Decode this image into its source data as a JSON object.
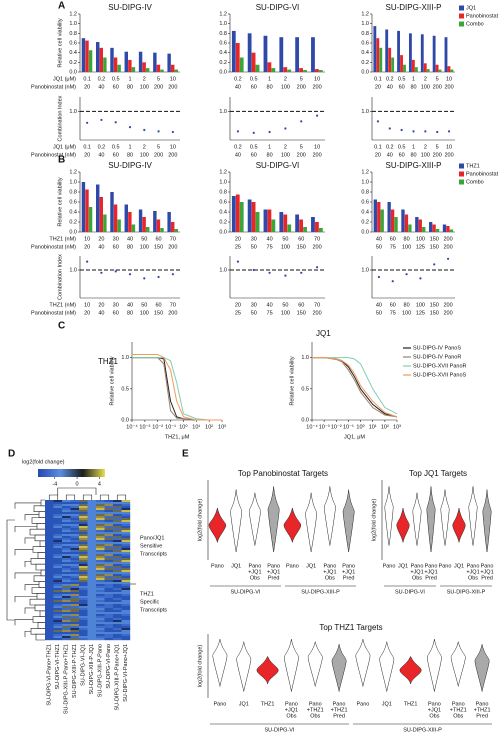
{
  "panel_labels": [
    "A",
    "B",
    "C",
    "D",
    "E"
  ],
  "chart_data": [
    {
      "type": "bar",
      "title": "SU-DIPG-IV",
      "ylabel": "Relative cell viability",
      "ylim": [
        0,
        1.2
      ],
      "yticks": [
        {
          "value": 0,
          "label": "0.0"
        },
        0.2,
        0.4,
        0.6,
        0.8,
        {
          "value": 1,
          "label": "1.0"
        },
        1.2
      ],
      "xlabels": [
        "JQ1 (μM)",
        "Panobinostat (nM)"
      ],
      "categories": [
        "0.1",
        "0.2",
        "0.5",
        "1",
        "2",
        "5",
        "10"
      ],
      "categories2": [
        "20",
        "40",
        "60",
        "80",
        "100",
        "200",
        "200"
      ],
      "series": [
        {
          "color": "#2f49a8",
          "values": [
            0.7,
            0.62,
            0.5,
            0.42,
            0.42,
            0.4,
            0.38
          ]
        },
        {
          "color": "#e8262a",
          "values": [
            0.65,
            0.5,
            0.3,
            0.25,
            0.2,
            0.15,
            0.15
          ]
        },
        {
          "color": "#3aa63a",
          "values": [
            0.45,
            0.3,
            0.15,
            0.1,
            0.08,
            0.05,
            0.05
          ]
        }
      ]
    },
    {
      "type": "bar",
      "title": "SU-DIPG-VI",
      "ylim": [
        0,
        1.2
      ],
      "yticks": [
        {
          "value": 0,
          "label": "0.0"
        },
        0.2,
        0.4,
        0.6,
        0.8,
        {
          "value": 1,
          "label": "1.0"
        },
        1.2
      ],
      "categories": [
        "0.2",
        "0.5",
        "1",
        "2",
        "5",
        "10"
      ],
      "categories2": [
        "40",
        "60",
        "80",
        "100",
        "200",
        "200"
      ],
      "series": [
        {
          "color": "#2f49a8",
          "values": [
            0.85,
            0.8,
            0.75,
            0.72,
            0.72,
            0.72
          ]
        },
        {
          "color": "#e8262a",
          "values": [
            0.6,
            0.4,
            0.2,
            0.1,
            0.08,
            0.06
          ]
        },
        {
          "color": "#3aa63a",
          "values": [
            0.3,
            0.15,
            0.08,
            0.05,
            0.04,
            0.04
          ]
        }
      ]
    },
    {
      "type": "bar",
      "title": "SU-DIPG-XIII-P",
      "ylim": [
        0,
        1.2
      ],
      "yticks": [
        {
          "value": 0,
          "label": "0.0"
        },
        0.2,
        0.4,
        0.6,
        0.8,
        {
          "value": 1,
          "label": "1.0"
        },
        1.2
      ],
      "legend": "right",
      "categories": [
        "0.1",
        "0.2",
        "0.5",
        "1",
        "2",
        "5",
        "10"
      ],
      "categories2": [
        "20",
        "40",
        "60",
        "80",
        "100",
        "200",
        "200"
      ],
      "series": [
        {
          "name": "JQ1",
          "color": "#2f49a8",
          "values": [
            0.95,
            0.88,
            0.85,
            0.8,
            0.78,
            0.75,
            0.72
          ]
        },
        {
          "name": "Panobinostat",
          "color": "#e8262a",
          "values": [
            0.7,
            0.5,
            0.35,
            0.25,
            0.18,
            0.15,
            0.12
          ]
        },
        {
          "name": "Combo",
          "color": "#3aa63a",
          "values": [
            0.5,
            0.3,
            0.15,
            0.1,
            0.06,
            0.05,
            0.05
          ]
        }
      ]
    },
    {
      "type": "scatter",
      "ylabel": "Combination Index",
      "ylim": [
        0,
        1.5
      ],
      "yticks": [
        {
          "value": 1,
          "label": "1.0"
        }
      ],
      "refline": 1,
      "color": "#2f49a8",
      "xlabels": [
        "JQ1 (μM)",
        "Panobinostat (nM)"
      ],
      "categories": [
        "0.1",
        "0.2",
        "0.5",
        "1",
        "2",
        "5",
        "10"
      ],
      "categories2": [
        "20",
        "40",
        "60",
        "80",
        "100",
        "200",
        "200"
      ],
      "values": [
        0.6,
        0.7,
        0.62,
        0.45,
        0.35,
        0.3,
        0.28
      ]
    },
    {
      "type": "scatter",
      "ylim": [
        0,
        1.5
      ],
      "yticks": [
        {
          "value": 1,
          "label": "1.0"
        }
      ],
      "refline": 1,
      "color": "#2f49a8",
      "categories": [
        "0.2",
        "0.5",
        "1",
        "2",
        "5",
        "10"
      ],
      "categories2": [
        "40",
        "60",
        "80",
        "100",
        "200",
        "200"
      ],
      "values": [
        0.3,
        0.25,
        0.28,
        0.4,
        0.65,
        0.85
      ]
    },
    {
      "type": "scatter",
      "ylim": [
        0,
        1.5
      ],
      "yticks": [
        {
          "value": 1,
          "label": "1.0"
        }
      ],
      "refline": 1,
      "color": "#2f49a8",
      "categories": [
        "0.1",
        "0.2",
        "0.5",
        "1",
        "2",
        "5",
        "10"
      ],
      "categories2": [
        "20",
        "40",
        "60",
        "80",
        "100",
        "200",
        "200"
      ],
      "values": [
        0.65,
        0.4,
        0.35,
        0.3,
        0.3,
        0.28,
        0.3
      ]
    },
    {
      "type": "bar",
      "title": "SU-DIPG-IV",
      "ylabel": "Relative cell viability",
      "ylim": [
        0,
        1.2
      ],
      "yticks": [
        {
          "value": 0,
          "label": "0.0"
        },
        0.2,
        0.4,
        0.6,
        0.8,
        {
          "value": 1,
          "label": "1.0"
        },
        1.2
      ],
      "xlabels": [
        "THZ1 (nM)",
        "Panobinostat (nM)"
      ],
      "categories": [
        "10",
        "20",
        "30",
        "40",
        "50",
        "60",
        "70"
      ],
      "categories2": [
        "20",
        "40",
        "60",
        "80",
        "100",
        "150",
        "200"
      ],
      "series": [
        {
          "color": "#2f49a8",
          "values": [
            1.0,
            0.95,
            0.8,
            0.55,
            0.45,
            0.42,
            0.4
          ]
        },
        {
          "color": "#e8262a",
          "values": [
            0.85,
            0.7,
            0.55,
            0.4,
            0.3,
            0.25,
            0.2
          ]
        },
        {
          "color": "#3aa63a",
          "values": [
            0.5,
            0.35,
            0.25,
            0.15,
            0.1,
            0.08,
            0.06
          ]
        }
      ]
    },
    {
      "type": "bar",
      "title": "SU-DIPG-VI",
      "ylim": [
        0,
        1.2
      ],
      "yticks": [
        {
          "value": 0,
          "label": "0.0"
        },
        0.2,
        0.4,
        0.6,
        0.8,
        {
          "value": 1,
          "label": "1.0"
        },
        1.2
      ],
      "categories": [
        "20",
        "30",
        "40",
        "50",
        "60",
        "70"
      ],
      "categories2": [
        "25",
        "50",
        "75",
        "100",
        "150",
        "200"
      ],
      "series": [
        {
          "color": "#2f49a8",
          "values": [
            0.72,
            0.65,
            0.45,
            0.4,
            0.35,
            0.3
          ]
        },
        {
          "color": "#e8262a",
          "values": [
            0.75,
            0.6,
            0.45,
            0.35,
            0.25,
            0.2
          ]
        },
        {
          "color": "#3aa63a",
          "values": [
            0.6,
            0.4,
            0.25,
            0.15,
            0.1,
            0.08
          ]
        }
      ]
    },
    {
      "type": "bar",
      "title": "SU-DIPG-XIII-P",
      "ylim": [
        0,
        1.2
      ],
      "yticks": [
        {
          "value": 0,
          "label": "0.0"
        },
        0.2,
        0.4,
        0.6,
        0.8,
        {
          "value": 1,
          "label": "1.0"
        },
        1.2
      ],
      "legend": "right",
      "categories": [
        "40",
        "60",
        "80",
        "100",
        "150",
        "200"
      ],
      "categories2": [
        "50",
        "75",
        "100",
        "125",
        "150",
        "200"
      ],
      "series": [
        {
          "name": "THZ1",
          "color": "#2f49a8",
          "values": [
            0.65,
            0.6,
            0.45,
            0.3,
            0.2,
            0.15
          ]
        },
        {
          "name": "Panobinostat",
          "color": "#e8262a",
          "values": [
            0.6,
            0.45,
            0.35,
            0.25,
            0.15,
            0.12
          ]
        },
        {
          "name": "Combo",
          "color": "#3aa63a",
          "values": [
            0.45,
            0.3,
            0.15,
            0.1,
            0.06,
            0.05
          ]
        }
      ]
    },
    {
      "type": "scatter",
      "ylabel": "Combination Index",
      "ylim": [
        0,
        1.5
      ],
      "yticks": [
        {
          "value": 1,
          "label": "1.0"
        }
      ],
      "refline": 1,
      "color": "#2f49a8",
      "xlabels": [
        "THZ1 (nM)",
        "Panobinostat (nM)"
      ],
      "categories": [
        "10",
        "20",
        "30",
        "40",
        "50",
        "60",
        "70"
      ],
      "categories2": [
        "20",
        "40",
        "60",
        "80",
        "100",
        "150",
        "200"
      ],
      "values": [
        1.3,
        0.9,
        0.95,
        0.85,
        0.7,
        0.75,
        0.85
      ]
    },
    {
      "type": "scatter",
      "ylim": [
        0,
        1.5
      ],
      "yticks": [
        {
          "value": 1,
          "label": "1.0"
        }
      ],
      "refline": 1,
      "color": "#2f49a8",
      "categories": [
        "20",
        "30",
        "40",
        "50",
        "60",
        "70"
      ],
      "categories2": [
        "25",
        "50",
        "75",
        "100",
        "150",
        "200"
      ],
      "values": [
        1.3,
        1.0,
        0.9,
        0.8,
        0.9,
        1.1
      ]
    },
    {
      "type": "scatter",
      "ylim": [
        0,
        1.5
      ],
      "yticks": [
        {
          "value": 1,
          "label": "1.0"
        }
      ],
      "refline": 1,
      "color": "#2f49a8",
      "categories": [
        "40",
        "60",
        "80",
        "100",
        "150",
        "200"
      ],
      "categories2": [
        "50",
        "75",
        "100",
        "125",
        "150",
        "200"
      ],
      "values": [
        0.75,
        0.6,
        0.85,
        0.7,
        1.2,
        1.4
      ]
    },
    {
      "type": "line",
      "title": "THZ1",
      "ylabel": "Relative cell viability",
      "xlabel": "THZ1, μM",
      "xscale": "log",
      "xlim": [
        0.0001,
        1000
      ],
      "ylim": [
        0,
        1.25
      ],
      "xticks": [
        {
          "value": 0.0001,
          "label": "10⁻⁴"
        },
        {
          "value": 0.001,
          "label": "10⁻³"
        },
        {
          "value": 0.01,
          "label": "10⁻²"
        },
        {
          "value": 0.1,
          "label": "10⁻¹"
        },
        {
          "value": 1,
          "label": "10⁰"
        },
        {
          "value": 10,
          "label": "10¹"
        },
        {
          "value": 100,
          "label": "10²"
        },
        {
          "value": 1000,
          "label": "10³"
        }
      ],
      "yticks": [
        {
          "value": 0,
          "label": "0.0"
        },
        0.5,
        {
          "value": 1,
          "label": "1.0"
        }
      ],
      "x": [
        0.0001,
        0.001,
        0.01,
        0.03,
        0.1,
        0.3,
        1,
        10,
        100,
        1000
      ],
      "series": [
        {
          "color": "#222222",
          "values": [
            1,
            1,
            1,
            0.98,
            0.3,
            0.05,
            0.02,
            0,
            0,
            0
          ]
        },
        {
          "color": "#9b7f6a",
          "values": [
            1,
            1,
            1,
            0.9,
            0.15,
            0.03,
            0.02,
            0,
            0,
            0
          ]
        },
        {
          "color": "#7fcfb0",
          "values": [
            1,
            1,
            1,
            1,
            0.95,
            0.6,
            0.1,
            0.02,
            0,
            0
          ]
        },
        {
          "color": "#f29a5c",
          "values": [
            1.05,
            1.05,
            1.05,
            1,
            0.8,
            0.3,
            0.05,
            0,
            0,
            0
          ]
        }
      ]
    },
    {
      "type": "line",
      "title": "JQ1",
      "ylabel": "Relative cell viability",
      "xlabel": "JQ1, μM",
      "xscale": "log",
      "xlim": [
        0.0001,
        1000
      ],
      "ylim": [
        0,
        1.25
      ],
      "legend": "right",
      "xticks": [
        {
          "value": 0.0001,
          "label": "10⁻⁴"
        },
        {
          "value": 0.001,
          "label": "10⁻³"
        },
        {
          "value": 0.01,
          "label": "10⁻²"
        },
        {
          "value": 0.1,
          "label": "10⁻¹"
        },
        {
          "value": 1,
          "label": "10⁰"
        },
        {
          "value": 10,
          "label": "10¹"
        },
        {
          "value": 100,
          "label": "10²"
        },
        {
          "value": 1000,
          "label": "10³"
        }
      ],
      "yticks": [
        {
          "value": 0,
          "label": "0.0"
        },
        0.5,
        {
          "value": 1,
          "label": "1.0"
        }
      ],
      "x": [
        0.0001,
        0.001,
        0.01,
        0.03,
        0.1,
        0.3,
        1,
        10,
        100,
        1000
      ],
      "series": [
        {
          "name": "SU-DIPG-IV PanoS",
          "color": "#222222",
          "values": [
            1,
            1,
            0.98,
            0.95,
            0.85,
            0.7,
            0.5,
            0.25,
            0.1,
            0.05
          ]
        },
        {
          "name": "SU-DIPG-IV PanoR",
          "color": "#9b7f6a",
          "values": [
            1,
            1,
            0.97,
            0.93,
            0.8,
            0.65,
            0.45,
            0.2,
            0.08,
            0.05
          ]
        },
        {
          "name": "SU-DIPG-XVII PanoR",
          "color": "#7fcfb0",
          "values": [
            1,
            1,
            1,
            1,
            1,
            0.98,
            0.9,
            0.5,
            0.2,
            0.1
          ]
        },
        {
          "name": "SU-DIPG-XVII PanoS",
          "color": "#f29a5c",
          "values": [
            1,
            1,
            0.98,
            0.95,
            0.88,
            0.75,
            0.55,
            0.3,
            0.12,
            0.05
          ]
        }
      ]
    },
    {
      "type": "heatmap",
      "colorbar_label": "log2(fold change)",
      "clim": [
        -7,
        5
      ],
      "colorbar_ticks": [
        -4,
        0,
        4
      ],
      "colors": [
        "#2448b0",
        "#5b8ee0",
        "#1c1c1c",
        "#eae050"
      ],
      "columns": [
        "SU-DIPG-VI-Pano+THZ1",
        "SU-DIPG-VI-THZ1",
        "SU-DIPG-XIII-P-Pano+THZ1",
        "SU-DIPG-XIII-P-THZ1",
        "SU-DIPG-VI-JQ1",
        "SU-DIPG-XIII-P-JQ1",
        "SU-DIPG-XIII-P-Pano",
        "SU-DIPG-VI-Pano",
        "SU-DIPG-XIII-P-Pano+JQ1",
        "SU-DIPG-VI-Pano+JQ1"
      ],
      "annotations": [
        [
          "Pano/JQ1",
          "Sensitive",
          "Transcripts"
        ],
        [
          "THZ1",
          "Specific",
          "Transcripts"
        ]
      ]
    },
    {
      "type": "violin",
      "title": "Top Panobinostat Targets",
      "ylabel": "log2(fold change)",
      "categories": [
        [
          "Pano"
        ],
        [
          "JQ1"
        ],
        [
          "Pano",
          "+JQ1",
          "Obs"
        ],
        [
          "Pano",
          "+JQ1",
          "Pred"
        ],
        [
          "Pano"
        ],
        [
          "JQ1"
        ],
        [
          "Pano",
          "+JQ1",
          "Obs"
        ],
        [
          "Pano",
          "+JQ1",
          "Pred"
        ]
      ],
      "colors": [
        "#e8262a",
        "#ffffff",
        "#ffffff",
        "#a9a9a9",
        "#e8262a",
        "#ffffff",
        "#ffffff",
        "#a9a9a9"
      ],
      "groups": [
        "SU-DIPG-VI",
        "SU-DIPG-XIII-P"
      ]
    },
    {
      "type": "violin",
      "title": "Top JQ1 Targets",
      "ylabel": "log2(fold change)",
      "categories": [
        [
          "Pano"
        ],
        [
          "JQ1"
        ],
        [
          "Pano",
          "+JQ1",
          "Obs"
        ],
        [
          "Pano",
          "+JQ1",
          "Pred"
        ],
        [
          "Pano"
        ],
        [
          "JQ1"
        ],
        [
          "Pano",
          "+JQ1",
          "Obs"
        ],
        [
          "Pano",
          "+JQ1",
          "Pred"
        ]
      ],
      "colors": [
        "#ffffff",
        "#e8262a",
        "#ffffff",
        "#a9a9a9",
        "#ffffff",
        "#e8262a",
        "#ffffff",
        "#a9a9a9"
      ],
      "groups": [
        "SU-DIPG-VI",
        "SU-DIPG-XIII-P"
      ]
    },
    {
      "type": "violin",
      "title": "Top THZ1 Targets",
      "ylabel": "log2(fold change)",
      "categories": [
        [
          "Pano"
        ],
        [
          "JQ1"
        ],
        [
          "THZ1"
        ],
        [
          "Pano",
          "+JQ1",
          "Obs"
        ],
        [
          "Pano",
          "+THZ1",
          "Obs"
        ],
        [
          "Pano",
          "+THZ1",
          "Pred"
        ],
        [
          "Pano"
        ],
        [
          "JQ1"
        ],
        [
          "THZ1"
        ],
        [
          "Pano",
          "+JQ1",
          "Obs"
        ],
        [
          "Pano",
          "+THZ1",
          "Obs"
        ],
        [
          "Pano",
          "+THZ1",
          "Pred"
        ]
      ],
      "colors": [
        "#ffffff",
        "#ffffff",
        "#e8262a",
        "#ffffff",
        "#ffffff",
        "#a9a9a9",
        "#ffffff",
        "#ffffff",
        "#e8262a",
        "#ffffff",
        "#ffffff",
        "#a9a9a9"
      ],
      "groups": [
        "SU-DIPG-VI",
        "SU-DIPG-XIII-P"
      ]
    }
  ]
}
